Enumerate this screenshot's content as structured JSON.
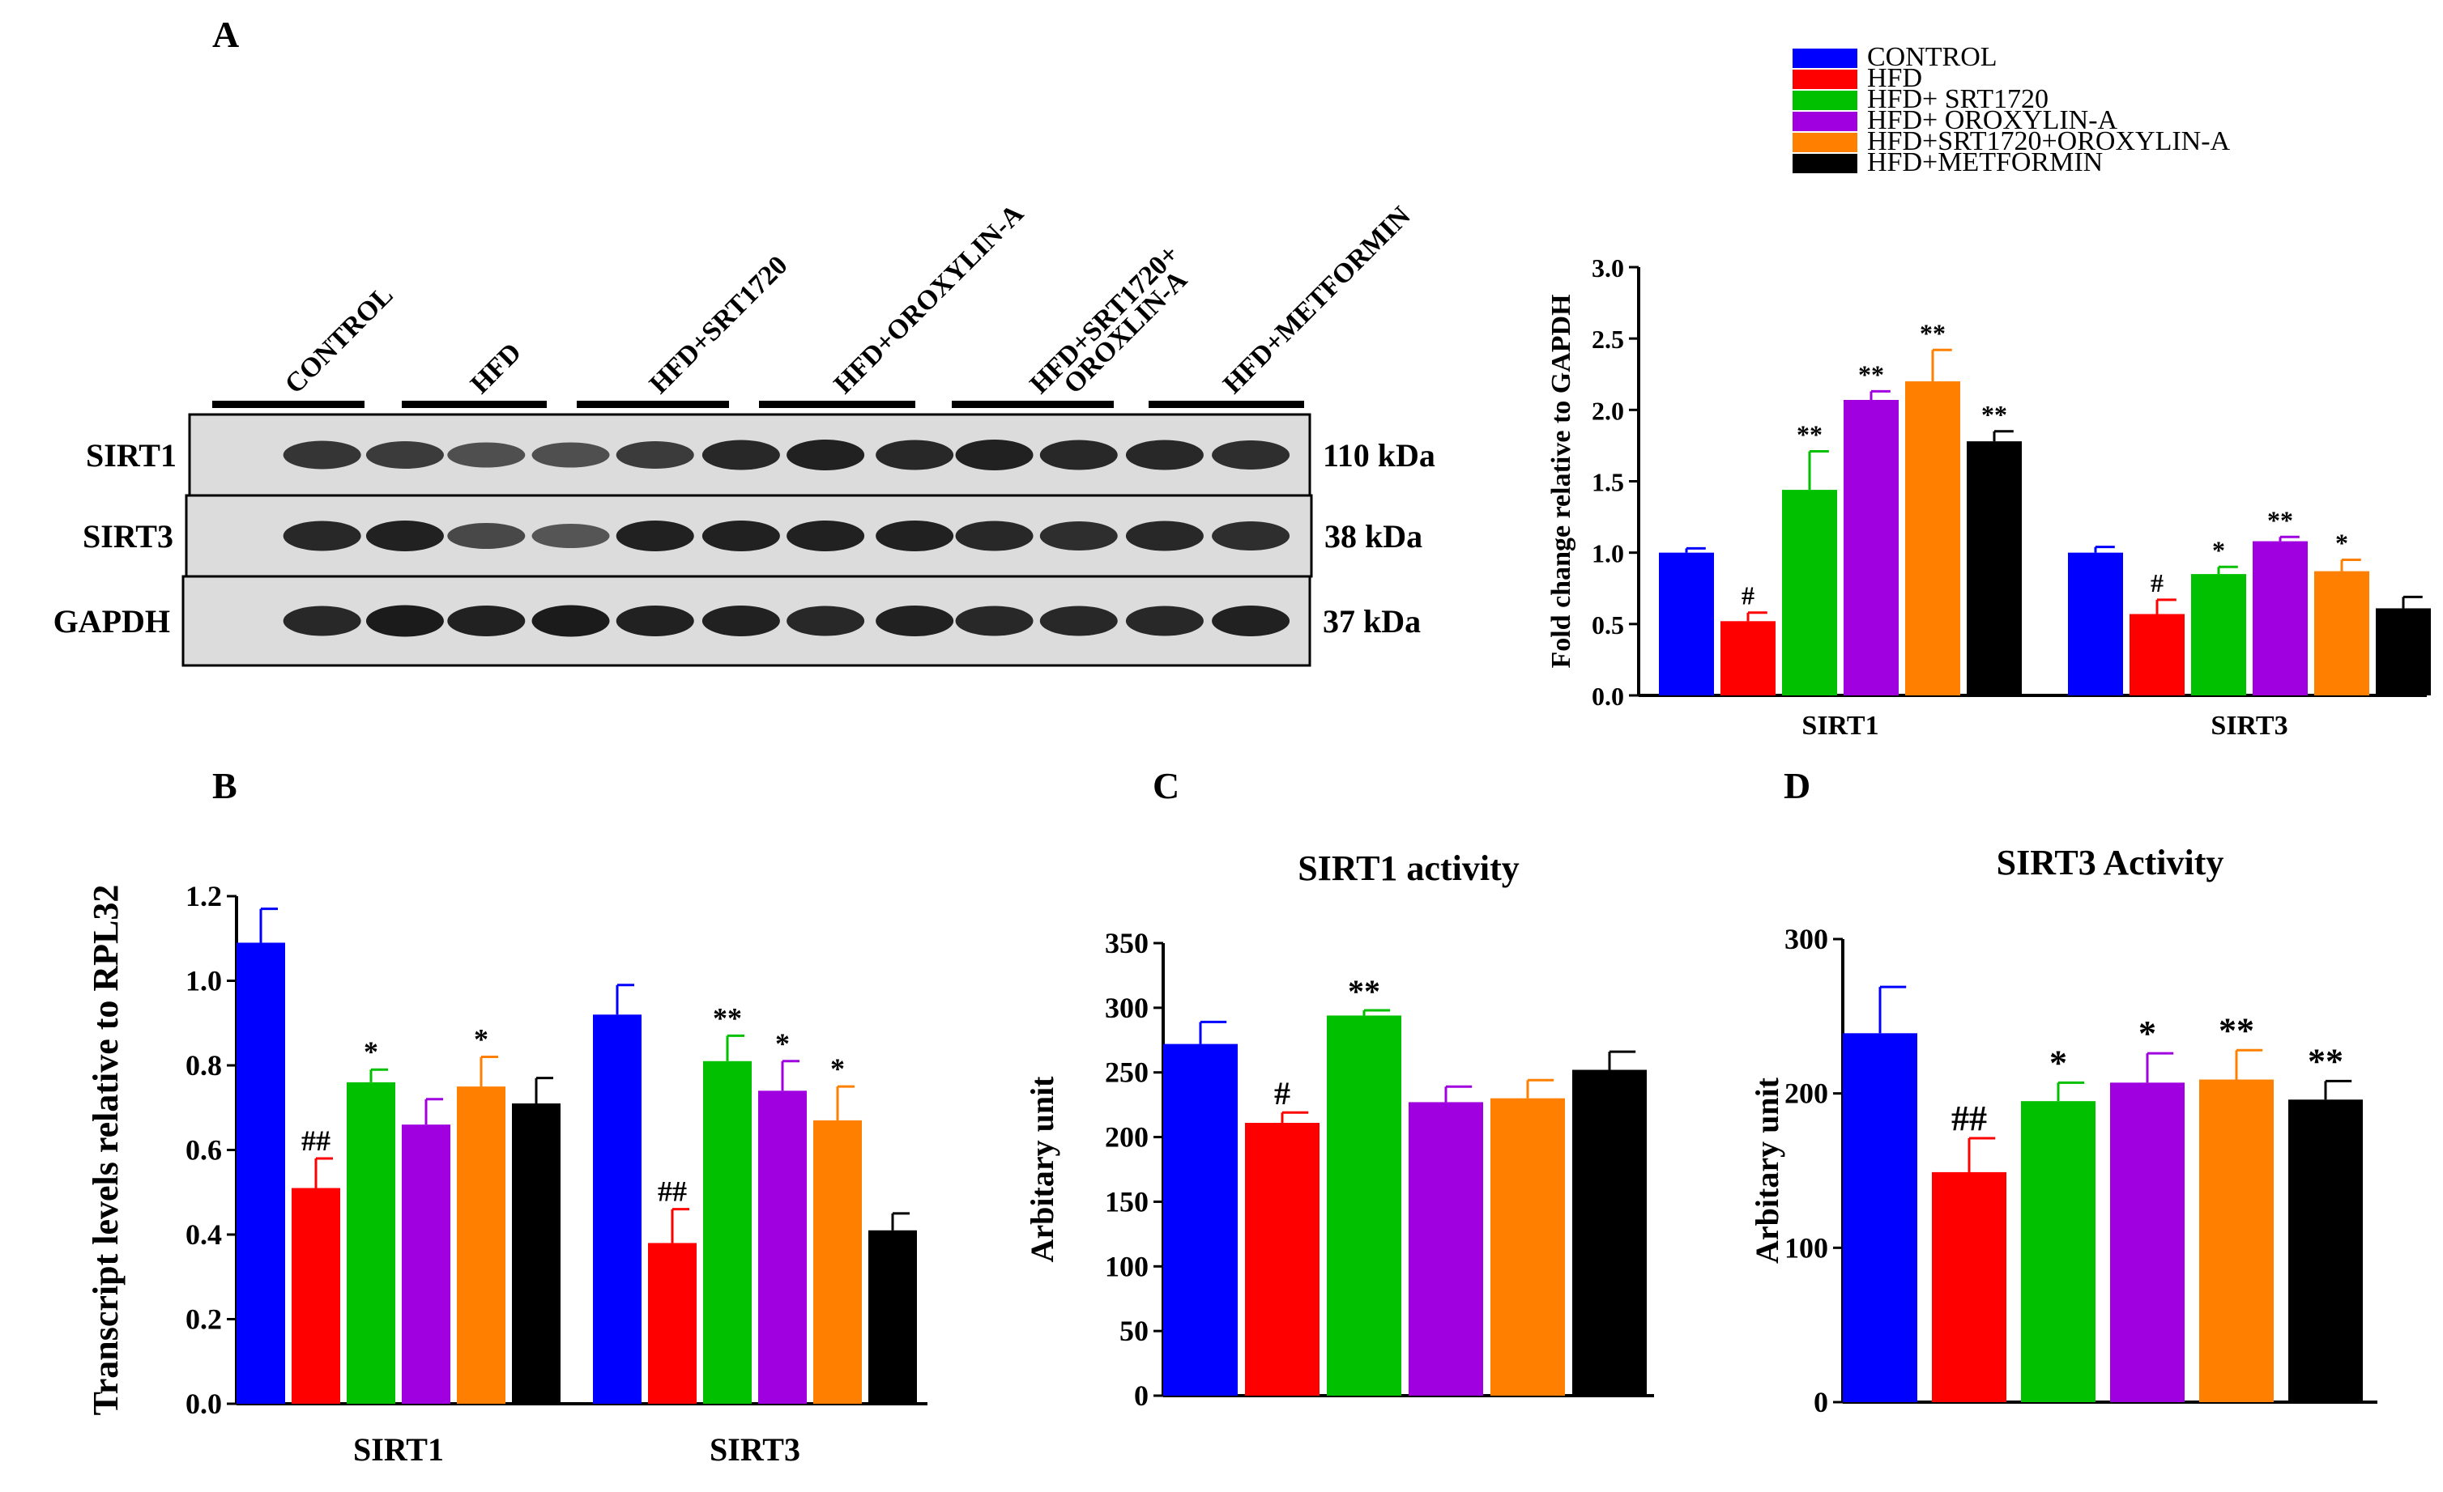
{
  "colors": {
    "control": "#0000ff",
    "hfd": "#ff0000",
    "srt1720": "#00c000",
    "oroxylin": "#a000e0",
    "combo": "#ff8000",
    "metformin": "#000000"
  },
  "legend": {
    "items": [
      {
        "label": "CONTROL",
        "color": "#0000ff"
      },
      {
        "label": "HFD",
        "color": "#ff0000"
      },
      {
        "label": "HFD+ SRT1720",
        "color": "#00c000"
      },
      {
        "label": "HFD+ OROXYLIN-A",
        "color": "#a000e0"
      },
      {
        "label": "HFD+SRT1720+OROXYLIN-A",
        "color": "#ff8000"
      },
      {
        "label": "HFD+METFORMIN",
        "color": "#000000"
      }
    ]
  },
  "western_blot": {
    "panel_label": "A",
    "lane_groups": [
      {
        "label": "CONTROL"
      },
      {
        "label": "HFD"
      },
      {
        "label": "HFD+SRT1720"
      },
      {
        "label": "HFD+OROXYLIN-A"
      },
      {
        "label": "HFD+SRT1720+",
        "label2": "OROXLIN-A"
      },
      {
        "label": "HFD+METFORMIN"
      }
    ],
    "bands": [
      {
        "protein": "SIRT1",
        "size": "110 kDa",
        "intensity": [
          0.75,
          0.7,
          0.55,
          0.55,
          0.7,
          0.85,
          0.9,
          0.85,
          0.9,
          0.85,
          0.85,
          0.8
        ]
      },
      {
        "protein": "SIRT3",
        "size": "38 kDa",
        "intensity": [
          0.85,
          0.9,
          0.6,
          0.5,
          0.9,
          0.9,
          0.9,
          0.9,
          0.85,
          0.8,
          0.85,
          0.8
        ]
      },
      {
        "protein": "GAPDH",
        "size": "37 kDa",
        "intensity": [
          0.85,
          0.95,
          0.9,
          0.95,
          0.9,
          0.9,
          0.85,
          0.9,
          0.85,
          0.85,
          0.85,
          0.9
        ]
      }
    ]
  },
  "chart_data": [
    {
      "id": "A_right",
      "type": "bar",
      "title": "",
      "xlabel": "",
      "ylabel": "Fold change relative to GAPDH",
      "ylim": [
        0,
        3.0
      ],
      "yticks": [
        "0.0",
        "0.5",
        "1.0",
        "1.5",
        "2.0",
        "2.5",
        "3.0"
      ],
      "categories": [
        "SIRT1",
        "SIRT3"
      ],
      "series": [
        {
          "name": "CONTROL",
          "values": [
            1.0,
            1.0
          ],
          "errors": [
            0.03,
            0.04
          ],
          "annotations": [
            "",
            ""
          ]
        },
        {
          "name": "HFD",
          "values": [
            0.52,
            0.57
          ],
          "errors": [
            0.06,
            0.1
          ],
          "annotations": [
            "#",
            "#"
          ]
        },
        {
          "name": "HFD+ SRT1720",
          "values": [
            1.44,
            0.85
          ],
          "errors": [
            0.27,
            0.05
          ],
          "annotations": [
            "**",
            "*"
          ]
        },
        {
          "name": "HFD+ OROXYLIN-A",
          "values": [
            2.07,
            1.08
          ],
          "errors": [
            0.06,
            0.03
          ],
          "annotations": [
            "**",
            "**"
          ]
        },
        {
          "name": "HFD+SRT1720+OROXYLIN-A",
          "values": [
            2.2,
            0.87
          ],
          "errors": [
            0.22,
            0.08
          ],
          "annotations": [
            "**",
            "*"
          ]
        },
        {
          "name": "HFD+METFORMIN",
          "values": [
            1.78,
            0.61
          ],
          "errors": [
            0.07,
            0.08
          ],
          "annotations": [
            "**",
            ""
          ]
        }
      ]
    },
    {
      "id": "B",
      "type": "bar",
      "panel_label": "B",
      "title": "",
      "xlabel": "",
      "ylabel": "Transcript levels relative to RPL32",
      "ylim": [
        0,
        1.2
      ],
      "yticks": [
        "0.0",
        "0.2",
        "0.4",
        "0.6",
        "0.8",
        "1.0",
        "1.2"
      ],
      "categories": [
        "SIRT1",
        "SIRT3"
      ],
      "series": [
        {
          "name": "CONTROL",
          "values": [
            1.09,
            0.92
          ],
          "errors": [
            0.08,
            0.07
          ],
          "annotations": [
            "",
            ""
          ]
        },
        {
          "name": "HFD",
          "values": [
            0.51,
            0.38
          ],
          "errors": [
            0.07,
            0.08
          ],
          "annotations": [
            "##",
            "##"
          ]
        },
        {
          "name": "HFD+ SRT1720",
          "values": [
            0.76,
            0.81
          ],
          "errors": [
            0.03,
            0.06
          ],
          "annotations": [
            "*",
            "**"
          ]
        },
        {
          "name": "HFD+ OROXYLIN-A",
          "values": [
            0.66,
            0.74
          ],
          "errors": [
            0.06,
            0.07
          ],
          "annotations": [
            "",
            "*"
          ]
        },
        {
          "name": "HFD+SRT1720+OROXYLIN-A",
          "values": [
            0.75,
            0.67
          ],
          "errors": [
            0.07,
            0.08
          ],
          "annotations": [
            "*",
            "*"
          ]
        },
        {
          "name": "HFD+METFORMIN",
          "values": [
            0.71,
            0.41
          ],
          "errors": [
            0.06,
            0.04
          ],
          "annotations": [
            "",
            ""
          ]
        }
      ]
    },
    {
      "id": "C",
      "type": "bar",
      "panel_label": "C",
      "title": "SIRT1 activity",
      "xlabel": "",
      "ylabel": "Arbitary unit",
      "ylim": [
        0,
        350
      ],
      "yticks": [
        "0",
        "50",
        "100",
        "150",
        "200",
        "250",
        "300",
        "350"
      ],
      "categories": [
        "CONTROL",
        "HFD",
        "HFD+ SRT1720",
        "HFD+ OROXYLIN-A",
        "HFD+SRT1720+OROXYLIN-A",
        "HFD+METFORMIN"
      ],
      "values": [
        272,
        211,
        294,
        227,
        230,
        252
      ],
      "errors": [
        17,
        8,
        4,
        12,
        14,
        14
      ],
      "annotations": [
        "",
        "#",
        "**",
        "",
        "",
        ""
      ]
    },
    {
      "id": "D",
      "type": "bar",
      "panel_label": "D",
      "title": "SIRT3 Activity",
      "xlabel": "",
      "ylabel": "Arbitary unit",
      "ylim": [
        0,
        300
      ],
      "yticks": [
        "0",
        "100",
        "200",
        "300"
      ],
      "categories": [
        "CONTROL",
        "HFD",
        "HFD+ SRT1720",
        "HFD+ OROXYLIN-A",
        "HFD+SRT1720+OROXYLIN-A",
        "HFD+METFORMIN"
      ],
      "values": [
        239,
        149,
        195,
        207,
        209,
        196
      ],
      "errors": [
        30,
        22,
        12,
        19,
        19,
        12
      ],
      "annotations": [
        "",
        "##",
        "*",
        "*",
        "**",
        "**"
      ]
    }
  ]
}
